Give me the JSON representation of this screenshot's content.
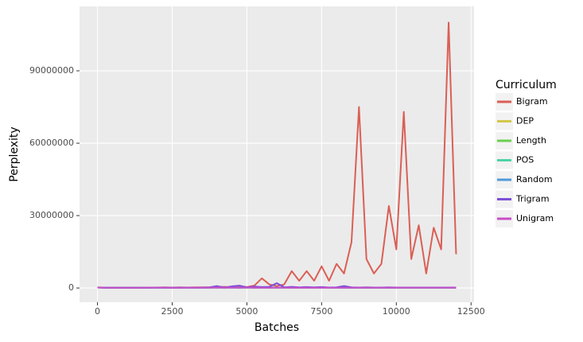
{
  "chart_data": {
    "type": "line",
    "x_label": "Batches",
    "y_label": "Perplexity",
    "legend_title": "Curriculum",
    "x": [
      0,
      250,
      500,
      750,
      1000,
      1250,
      1500,
      1750,
      2000,
      2250,
      2500,
      2750,
      3000,
      3250,
      3500,
      3750,
      4000,
      4250,
      4500,
      4750,
      5000,
      5250,
      5500,
      5750,
      6000,
      6250,
      6500,
      6750,
      7000,
      7250,
      7500,
      7750,
      8000,
      8250,
      8500,
      8750,
      9000,
      9250,
      9500,
      9750,
      10000,
      10250,
      10500,
      10750,
      11000,
      11250,
      11500,
      11750,
      12000
    ],
    "series": [
      {
        "name": "Bigram",
        "color": "#da5f55",
        "values": [
          300000,
          100000,
          100000,
          100000,
          100000,
          200000,
          100000,
          200000,
          200000,
          300000,
          200000,
          300000,
          200000,
          300000,
          300000,
          300000,
          400000,
          500000,
          300000,
          600000,
          400000,
          1000000,
          4000000,
          1500000,
          800000,
          1500000,
          7000000,
          3000000,
          7000000,
          3000000,
          9000000,
          3000000,
          10000000,
          6000000,
          19000000,
          75000000,
          12000000,
          6000000,
          10000000,
          34000000,
          16000000,
          73000000,
          12000000,
          26000000,
          6000000,
          25000000,
          16000000,
          110000000,
          14000000
        ]
      },
      {
        "name": "DEP",
        "color": "#d3c74b",
        "values": [
          200000,
          100000,
          100000,
          100000,
          100000,
          100000,
          100000,
          100000,
          200000,
          100000,
          100000,
          100000,
          100000,
          100000,
          100000,
          200000,
          100000,
          200000,
          100000,
          200000,
          100000,
          200000,
          100000,
          200000,
          100000,
          200000,
          100000,
          200000,
          100000,
          100000,
          200000,
          100000,
          200000,
          100000,
          100000,
          200000,
          100000,
          100000,
          100000,
          200000,
          100000,
          100000,
          100000,
          100000,
          100000,
          100000,
          100000,
          100000,
          100000
        ]
      },
      {
        "name": "Length",
        "color": "#6ccf4f",
        "values": [
          200000,
          100000,
          100000,
          100000,
          100000,
          100000,
          200000,
          100000,
          100000,
          100000,
          100000,
          100000,
          200000,
          100000,
          100000,
          100000,
          200000,
          100000,
          300000,
          100000,
          200000,
          100000,
          200000,
          300000,
          200000,
          100000,
          200000,
          100000,
          300000,
          100000,
          200000,
          100000,
          200000,
          100000,
          200000,
          100000,
          100000,
          100000,
          100000,
          100000,
          100000,
          100000,
          100000,
          100000,
          100000,
          100000,
          100000,
          100000,
          100000
        ]
      },
      {
        "name": "POS",
        "color": "#4fd3a8",
        "values": [
          200000,
          100000,
          100000,
          100000,
          100000,
          100000,
          100000,
          100000,
          100000,
          100000,
          100000,
          200000,
          100000,
          100000,
          100000,
          100000,
          100000,
          100000,
          200000,
          100000,
          100000,
          200000,
          100000,
          100000,
          200000,
          100000,
          100000,
          100000,
          200000,
          100000,
          100000,
          200000,
          100000,
          100000,
          100000,
          100000,
          200000,
          100000,
          100000,
          100000,
          100000,
          100000,
          100000,
          100000,
          100000,
          100000,
          100000,
          100000,
          100000
        ]
      },
      {
        "name": "Random",
        "color": "#4f9bd8",
        "values": [
          200000,
          100000,
          100000,
          100000,
          100000,
          100000,
          100000,
          100000,
          100000,
          100000,
          100000,
          100000,
          100000,
          100000,
          100000,
          100000,
          200000,
          100000,
          100000,
          100000,
          200000,
          100000,
          100000,
          100000,
          100000,
          200000,
          100000,
          100000,
          100000,
          100000,
          200000,
          100000,
          100000,
          100000,
          100000,
          100000,
          100000,
          100000,
          100000,
          100000,
          100000,
          100000,
          100000,
          100000,
          100000,
          100000,
          100000,
          100000,
          100000
        ]
      },
      {
        "name": "Trigram",
        "color": "#7c4fd8",
        "values": [
          200000,
          100000,
          100000,
          100000,
          100000,
          100000,
          100000,
          100000,
          200000,
          100000,
          100000,
          100000,
          200000,
          100000,
          200000,
          300000,
          800000,
          200000,
          700000,
          1000000,
          300000,
          600000,
          400000,
          500000,
          2000000,
          300000,
          500000,
          300000,
          400000,
          300000,
          400000,
          200000,
          300000,
          800000,
          300000,
          200000,
          300000,
          200000,
          200000,
          300000,
          200000,
          200000,
          200000,
          200000,
          200000,
          200000,
          200000,
          200000,
          200000
        ]
      },
      {
        "name": "Unigram",
        "color": "#c94fc9",
        "values": [
          200000,
          100000,
          100000,
          100000,
          100000,
          100000,
          100000,
          200000,
          100000,
          200000,
          100000,
          100000,
          100000,
          200000,
          100000,
          100000,
          200000,
          100000,
          200000,
          100000,
          200000,
          100000,
          100000,
          100000,
          200000,
          100000,
          100000,
          100000,
          100000,
          100000,
          100000,
          100000,
          100000,
          100000,
          100000,
          100000,
          100000,
          100000,
          100000,
          100000,
          100000,
          100000,
          100000,
          100000,
          100000,
          100000,
          100000,
          100000,
          100000
        ]
      }
    ],
    "xlim": [
      -600,
      12600
    ],
    "ylim": [
      -5900000,
      116700000
    ],
    "xticks": [
      0,
      2500,
      5000,
      7500,
      10000,
      12500
    ],
    "yticks": [
      0,
      30000000,
      60000000,
      90000000
    ],
    "grid": true,
    "legend_position": "right"
  }
}
